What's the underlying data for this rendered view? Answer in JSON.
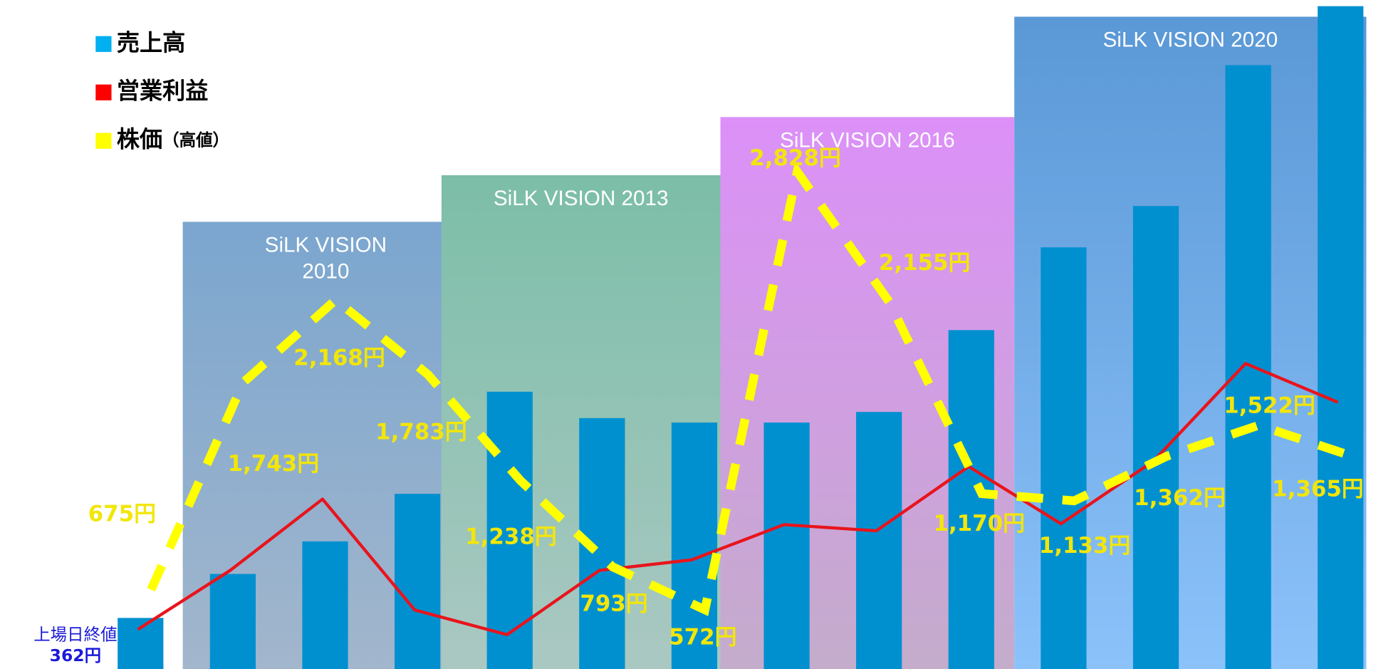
{
  "chart_data": {
    "type": "bar",
    "panels": [
      {
        "title": "SiLK VISION 2010"
      },
      {
        "title": "SiLK VISION 2013"
      },
      {
        "title": "SiLK VISION 2016"
      },
      {
        "title": "SiLK VISION 2020"
      }
    ],
    "ylim": [
      0,
      760
    ],
    "y2lim": [
      0,
      760
    ],
    "y3lim": [
      267,
      3712
    ],
    "series": [
      {
        "name": "売上高",
        "color": "#0090d0",
        "legend_color": "#00b0f0",
        "values": [
          58,
          108,
          145,
          199,
          315,
          285,
          280,
          280,
          292,
          385,
          479,
          526,
          686,
          753
        ]
      },
      {
        "name": "営業利益",
        "color": "#e8141c",
        "legend_color": "#ff0000",
        "axis": "y2",
        "type": "line",
        "values": [
          45,
          112,
          193,
          67,
          39,
          112,
          124,
          164,
          157,
          230,
          165,
          236,
          347,
          303
        ]
      },
      {
        "name": "株価",
        "name_suffix": "（高値）",
        "color": "#ffff00",
        "legend_color": "#ffff00",
        "axis": "y3",
        "type": "line",
        "values": [
          675,
          1743,
          2168,
          1783,
          1238,
          793,
          572,
          2828,
          2155,
          1170,
          1133,
          1362,
          1522,
          1365
        ],
        "value_labels": [
          "675円",
          "1,743円",
          "2,168円",
          "1,783円",
          "1,238円",
          "793円",
          "572円",
          "2,828円",
          "2,155円",
          "1,170円",
          "1,133円",
          "1,362円",
          "1,522円",
          "1,365円"
        ]
      }
    ],
    "listing": {
      "label": "上場日終値",
      "value": 362,
      "value_label": "362円"
    }
  }
}
